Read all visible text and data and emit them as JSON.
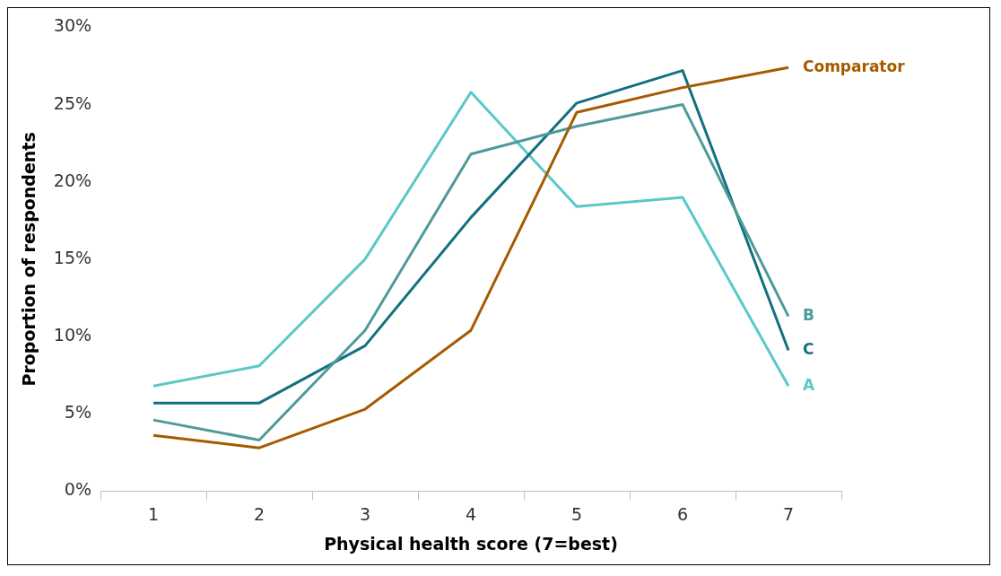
{
  "chart_data": {
    "type": "line",
    "xlabel": "Physical health score (7=best)",
    "ylabel": "Proportion of respondents",
    "categories": [
      "1",
      "2",
      "3",
      "4",
      "5",
      "6",
      "7"
    ],
    "series": [
      {
        "name": "Comparator",
        "color": "#a65a00",
        "values": [
          3.6,
          2.8,
          5.3,
          10.4,
          24.5,
          26.1,
          27.4
        ]
      },
      {
        "name": "B",
        "color": "#4e9a9a",
        "values": [
          4.6,
          3.3,
          10.4,
          21.8,
          23.6,
          25.0,
          11.3
        ]
      },
      {
        "name": "C",
        "color": "#13707e",
        "values": [
          5.7,
          5.7,
          9.4,
          17.7,
          25.1,
          27.2,
          9.1
        ]
      },
      {
        "name": "A",
        "color": "#5bc8c8",
        "values": [
          6.8,
          8.1,
          15.0,
          25.8,
          18.4,
          19.0,
          6.8
        ]
      }
    ],
    "ylim": [
      0,
      30
    ],
    "yticks": [
      {
        "value": 0,
        "label": "0%"
      },
      {
        "value": 5,
        "label": "5%"
      },
      {
        "value": 10,
        "label": "10%"
      },
      {
        "value": 15,
        "label": "15%"
      },
      {
        "value": 20,
        "label": "20%"
      },
      {
        "value": 25,
        "label": "25%"
      },
      {
        "value": 30,
        "label": "30%"
      }
    ],
    "grid": false,
    "legend": false,
    "marker": "none",
    "line_style": "solid"
  }
}
